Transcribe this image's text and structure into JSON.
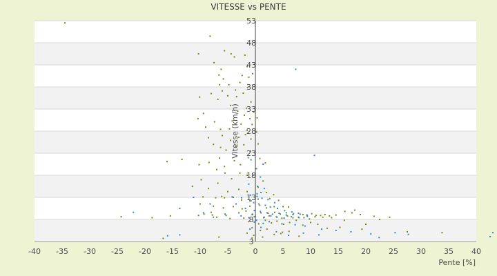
{
  "chart_data": {
    "type": "scatter",
    "title": "VITESSE vs PENTE",
    "xlabel": "Pente [%]",
    "ylabel": "Vitesse (km/h)",
    "xlim": [
      -40,
      40
    ],
    "ylim": [
      3,
      53
    ],
    "x_ticks": [
      -40,
      -35,
      -30,
      -25,
      -20,
      -15,
      -10,
      -5,
      0,
      5,
      10,
      15,
      20,
      25,
      30,
      35,
      40
    ],
    "y_ticks": [
      3,
      8,
      13,
      18,
      23,
      28,
      33,
      38,
      43,
      48,
      53
    ],
    "grid": "horizontal alternating bands",
    "legend": "none",
    "colors": {
      "series_a": "#7a8a10",
      "series_b": "#2a88d8"
    },
    "series": [
      {
        "points": [
          [
            -34.5,
            52.5
          ],
          [
            -8.2,
            49.5
          ],
          [
            -10.3,
            45.5
          ],
          [
            -7.5,
            43.5
          ],
          [
            -5.6,
            46.2
          ],
          [
            -4.4,
            45.5
          ],
          [
            -3.8,
            44.8
          ],
          [
            -1.9,
            45.2
          ],
          [
            -1.0,
            47.8
          ],
          [
            -1.5,
            42.6
          ],
          [
            -1.2,
            40.2
          ],
          [
            -2.4,
            40.6
          ],
          [
            -6.2,
            42.0
          ],
          [
            -6.6,
            40.7
          ],
          [
            -5.8,
            39.8
          ],
          [
            -6.5,
            38.5
          ],
          [
            -6.0,
            37.1
          ],
          [
            -4.8,
            38.5
          ],
          [
            -3.6,
            37.3
          ],
          [
            -2.8,
            39.0
          ],
          [
            -10.1,
            35.7
          ],
          [
            -8.0,
            36.5
          ],
          [
            -6.8,
            35.2
          ],
          [
            -5.0,
            36.0
          ],
          [
            -3.4,
            35.8
          ],
          [
            -2.2,
            36.6
          ],
          [
            -1.4,
            37.9
          ],
          [
            -0.5,
            41.0
          ],
          [
            -0.8,
            34.6
          ],
          [
            -1.6,
            33.2
          ],
          [
            -4.5,
            33.8
          ],
          [
            -3.2,
            32.5
          ],
          [
            -2.0,
            31.6
          ],
          [
            -9.4,
            32.0
          ],
          [
            -10.4,
            30.8
          ],
          [
            -7.4,
            30.1
          ],
          [
            -4.2,
            30.3
          ],
          [
            -2.6,
            29.6
          ],
          [
            -1.0,
            30.8
          ],
          [
            -0.3,
            32.3
          ],
          [
            -9.0,
            28.9
          ],
          [
            -6.3,
            28.4
          ],
          [
            -4.7,
            28.5
          ],
          [
            -1.5,
            28.2
          ],
          [
            -0.6,
            29.5
          ],
          [
            0.3,
            31.0
          ],
          [
            -8.5,
            26.5
          ],
          [
            -6.0,
            27.0
          ],
          [
            -4.5,
            25.9
          ],
          [
            -3.0,
            26.6
          ],
          [
            -1.8,
            27.2
          ],
          [
            -0.8,
            26.2
          ],
          [
            0.2,
            27.8
          ],
          [
            -7.6,
            25.0
          ],
          [
            -6.3,
            24.3
          ],
          [
            -5.3,
            23.7
          ],
          [
            -3.5,
            24.6
          ],
          [
            -2.1,
            24.9
          ],
          [
            -0.9,
            23.5
          ],
          [
            0.5,
            25.1
          ],
          [
            -16.0,
            21.1
          ],
          [
            -13.3,
            21.6
          ],
          [
            -10.2,
            20.4
          ],
          [
            -8.4,
            20.9
          ],
          [
            -6.5,
            21.9
          ],
          [
            -5.6,
            20.0
          ],
          [
            -3.8,
            21.3
          ],
          [
            -2.7,
            20.4
          ],
          [
            -1.3,
            22.0
          ],
          [
            0.8,
            21.8
          ],
          [
            1.8,
            20.8
          ],
          [
            -9.8,
            17.0
          ],
          [
            -7.0,
            19.3
          ],
          [
            -5.5,
            18.5
          ],
          [
            -4.3,
            17.2
          ],
          [
            -2.8,
            18.5
          ],
          [
            -1.5,
            18.0
          ],
          [
            0.0,
            19.5
          ],
          [
            1.4,
            16.7
          ],
          [
            -11.4,
            15.5
          ],
          [
            -8.5,
            15.0
          ],
          [
            -6.8,
            16.2
          ],
          [
            -5.0,
            14.3
          ],
          [
            -3.0,
            14.8
          ],
          [
            -1.5,
            14.3
          ],
          [
            0.5,
            15.3
          ],
          [
            2.0,
            14.1
          ],
          [
            3.3,
            13.6
          ],
          [
            -9.5,
            13.1
          ],
          [
            -7.2,
            12.9
          ],
          [
            -5.6,
            12.9
          ],
          [
            -4.0,
            13.0
          ],
          [
            -2.5,
            12.4
          ],
          [
            -0.8,
            12.2
          ],
          [
            0.5,
            12.6
          ],
          [
            2.6,
            12.7
          ],
          [
            4.2,
            12.3
          ],
          [
            -10.0,
            11.5
          ],
          [
            -7.6,
            11.0
          ],
          [
            -5.8,
            10.6
          ],
          [
            -4.0,
            10.9
          ],
          [
            -2.4,
            10.4
          ],
          [
            -1.0,
            11.0
          ],
          [
            0.8,
            11.2
          ],
          [
            2.0,
            10.6
          ],
          [
            3.4,
            10.9
          ],
          [
            5.0,
            10.9
          ],
          [
            6.0,
            10.8
          ],
          [
            -8.0,
            9.6
          ],
          [
            -5.3,
            8.9
          ],
          [
            -3.0,
            9.5
          ],
          [
            -1.7,
            9.9
          ],
          [
            -0.5,
            9.2
          ],
          [
            1.0,
            9.5
          ],
          [
            2.3,
            9.4
          ],
          [
            3.5,
            9.6
          ],
          [
            4.5,
            9.2
          ],
          [
            5.6,
            9.5
          ],
          [
            6.8,
            9.1
          ],
          [
            7.8,
            9.4
          ],
          [
            8.6,
            9.1
          ],
          [
            9.4,
            8.9
          ],
          [
            10.2,
            9.3
          ],
          [
            11.0,
            8.9
          ],
          [
            11.8,
            8.9
          ],
          [
            12.6,
            9.1
          ],
          [
            13.4,
            8.8
          ],
          [
            14.6,
            9.0
          ],
          [
            16.2,
            9.8
          ],
          [
            -24.3,
            8.6
          ],
          [
            -18.7,
            8.4
          ],
          [
            -15.4,
            8.8
          ],
          [
            -10.3,
            8.9
          ],
          [
            -9.3,
            9.2
          ],
          [
            -7.0,
            8.5
          ],
          [
            -4.6,
            8.2
          ],
          [
            -2.1,
            8.3
          ],
          [
            -0.2,
            8.6
          ],
          [
            1.5,
            8.4
          ],
          [
            2.5,
            8.8
          ],
          [
            3.8,
            8.6
          ],
          [
            4.8,
            8.3
          ],
          [
            5.8,
            8.8
          ],
          [
            6.8,
            8.4
          ],
          [
            7.8,
            8.5
          ],
          [
            8.8,
            8.4
          ],
          [
            9.8,
            8.1
          ],
          [
            10.8,
            8.6
          ],
          [
            12.2,
            8.5
          ],
          [
            13.8,
            8.4
          ],
          [
            17.5,
            9.5
          ],
          [
            18.0,
            10.1
          ],
          [
            19.0,
            9.1
          ],
          [
            21.5,
            8.7
          ],
          [
            22.5,
            8.0
          ],
          [
            24.3,
            8.5
          ],
          [
            -1.2,
            7.5
          ],
          [
            0.6,
            7.0
          ],
          [
            1.8,
            7.8
          ],
          [
            2.9,
            7.2
          ],
          [
            3.9,
            7.6
          ],
          [
            5.1,
            6.9
          ],
          [
            6.2,
            7.3
          ],
          [
            7.4,
            7.8
          ],
          [
            8.6,
            6.7
          ],
          [
            10.0,
            7.3
          ],
          [
            11.3,
            6.9
          ],
          [
            13.0,
            6.0
          ],
          [
            15.3,
            6.2
          ],
          [
            16.1,
            7.8
          ],
          [
            19.3,
            5.8
          ],
          [
            20.0,
            6.9
          ],
          [
            27.5,
            5.2
          ],
          [
            33.8,
            5.0
          ],
          [
            -0.6,
            6.1
          ],
          [
            0.9,
            5.5
          ],
          [
            2.1,
            5.8
          ],
          [
            3.4,
            4.6
          ],
          [
            4.9,
            5.1
          ],
          [
            7.9,
            4.2
          ],
          [
            -6.6,
            4.0
          ],
          [
            -16.7,
            3.7
          ],
          [
            -0.3,
            4.4
          ],
          [
            1.3,
            4.0
          ],
          [
            -0.6,
            3.8
          ],
          [
            4.6,
            4.8
          ],
          [
            6.1,
            5.3
          ],
          [
            -1.5,
            4.9
          ],
          [
            -7.8,
            9.0
          ],
          [
            -6.1,
            13.2
          ]
        ]
      },
      {
        "points": [
          [
            7.3,
            42.0
          ],
          [
            10.7,
            22.5
          ],
          [
            -0.8,
            21.5
          ],
          [
            0.2,
            19.5
          ],
          [
            1.4,
            20.5
          ],
          [
            -0.4,
            18.0
          ],
          [
            0.9,
            17.6
          ],
          [
            -1.2,
            16.0
          ],
          [
            0.4,
            15.5
          ],
          [
            1.6,
            15.0
          ],
          [
            -0.9,
            13.5
          ],
          [
            0.3,
            13.2
          ],
          [
            1.2,
            12.8
          ],
          [
            2.3,
            12.5
          ],
          [
            3.5,
            11.8
          ],
          [
            -4.2,
            13.1
          ],
          [
            -2.5,
            12.9
          ],
          [
            -1.0,
            12.2
          ],
          [
            0.6,
            11.5
          ],
          [
            1.8,
            11.2
          ],
          [
            2.7,
            10.8
          ],
          [
            4.0,
            10.5
          ],
          [
            5.3,
            10.0
          ],
          [
            6.6,
            9.7
          ],
          [
            -11.2,
            13.0
          ],
          [
            -8.2,
            11.5
          ],
          [
            -3.5,
            11.5
          ],
          [
            -1.8,
            10.5
          ],
          [
            -0.2,
            10.0
          ],
          [
            0.9,
            9.8
          ],
          [
            2.1,
            9.5
          ],
          [
            3.1,
            9.2
          ],
          [
            4.3,
            9.4
          ],
          [
            5.6,
            9.0
          ],
          [
            6.9,
            9.3
          ],
          [
            8.1,
            9.2
          ],
          [
            9.3,
            9.0
          ],
          [
            -13.7,
            10.5
          ],
          [
            -9.4,
            9.5
          ],
          [
            -5.5,
            9.2
          ],
          [
            -2.6,
            8.8
          ],
          [
            0.0,
            8.7
          ],
          [
            1.6,
            8.5
          ],
          [
            2.8,
            8.8
          ],
          [
            3.9,
            8.5
          ],
          [
            5.2,
            8.3
          ],
          [
            6.5,
            8.6
          ],
          [
            7.9,
            8.4
          ],
          [
            9.4,
            8.7
          ],
          [
            -22.1,
            9.6
          ],
          [
            -7.6,
            8.5
          ],
          [
            -1.2,
            8.4
          ],
          [
            0.2,
            7.8
          ],
          [
            2.5,
            7.5
          ],
          [
            4.8,
            7.0
          ],
          [
            7.2,
            6.8
          ],
          [
            9.0,
            6.5
          ],
          [
            12.0,
            5.8
          ],
          [
            14.6,
            5.5
          ],
          [
            17.3,
            5.2
          ],
          [
            20.9,
            4.7
          ],
          [
            25.3,
            5.0
          ],
          [
            27.7,
            4.6
          ],
          [
            22.4,
            3.9
          ],
          [
            -15.9,
            4.3
          ],
          [
            -13.7,
            4.5
          ],
          [
            -1.0,
            5.8
          ],
          [
            1.0,
            6.2
          ],
          [
            3.8,
            5.2
          ],
          [
            6.0,
            4.4
          ],
          [
            8.7,
            4.9
          ],
          [
            11.5,
            4.5
          ],
          [
            43.0,
            5.0
          ],
          [
            42.5,
            4.1
          ],
          [
            -0.2,
            7.4
          ],
          [
            1.4,
            7.1
          ],
          [
            -0.6,
            9.1
          ],
          [
            0.3,
            13.8
          ],
          [
            1.0,
            14.1
          ],
          [
            -0.3,
            11.8
          ]
        ]
      }
    ]
  }
}
